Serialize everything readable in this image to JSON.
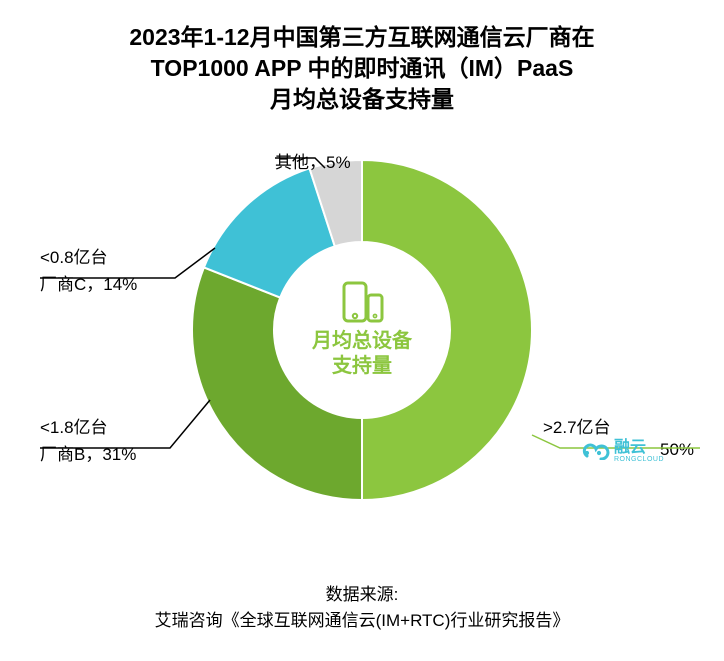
{
  "title": {
    "line1": "2023年1-12月中国第三方互联网通信云厂商在",
    "line2": "TOP1000 APP 中的即时通讯（IM）PaaS",
    "line3": "月均总设备支持量",
    "fontsize": 23,
    "color": "#000000"
  },
  "chart": {
    "type": "donut",
    "center_label_line1": "月均总设备",
    "center_label_line2": "支持量",
    "center_label_fontsize": 20,
    "center_label_color": "#8cc63f",
    "center_icon_color": "#8cc63f",
    "outer_radius": 170,
    "inner_radius": 88,
    "background_color": "#ffffff",
    "slices": [
      {
        "name": "融云",
        "value": 50,
        "color": "#8cc63f",
        "label_main": "50%",
        "label_sub": ">2.7亿台"
      },
      {
        "name": "厂商B",
        "value": 31,
        "color": "#6da82e",
        "label_main": "厂商B，31%",
        "label_sub": "<1.8亿台"
      },
      {
        "name": "厂商C",
        "value": 14,
        "color": "#3fc1d6",
        "label_main": "厂商C，14%",
        "label_sub": "<0.8亿台"
      },
      {
        "name": "其他",
        "value": 5,
        "color": "#d6d6d6",
        "label_main": "其他，5%"
      }
    ],
    "leader_color_default": "#000000",
    "label_fontsize": 17
  },
  "brand": {
    "logo_color": "#3fc1d6",
    "cn": "融云",
    "en": "RONGCLOUD",
    "cn_fontsize": 16,
    "en_fontsize": 7
  },
  "source": {
    "line1": "数据来源:",
    "line2": "艾瑞咨询《全球互联网通信云(IM+RTC)行业研究报告》",
    "fontsize": 17
  }
}
